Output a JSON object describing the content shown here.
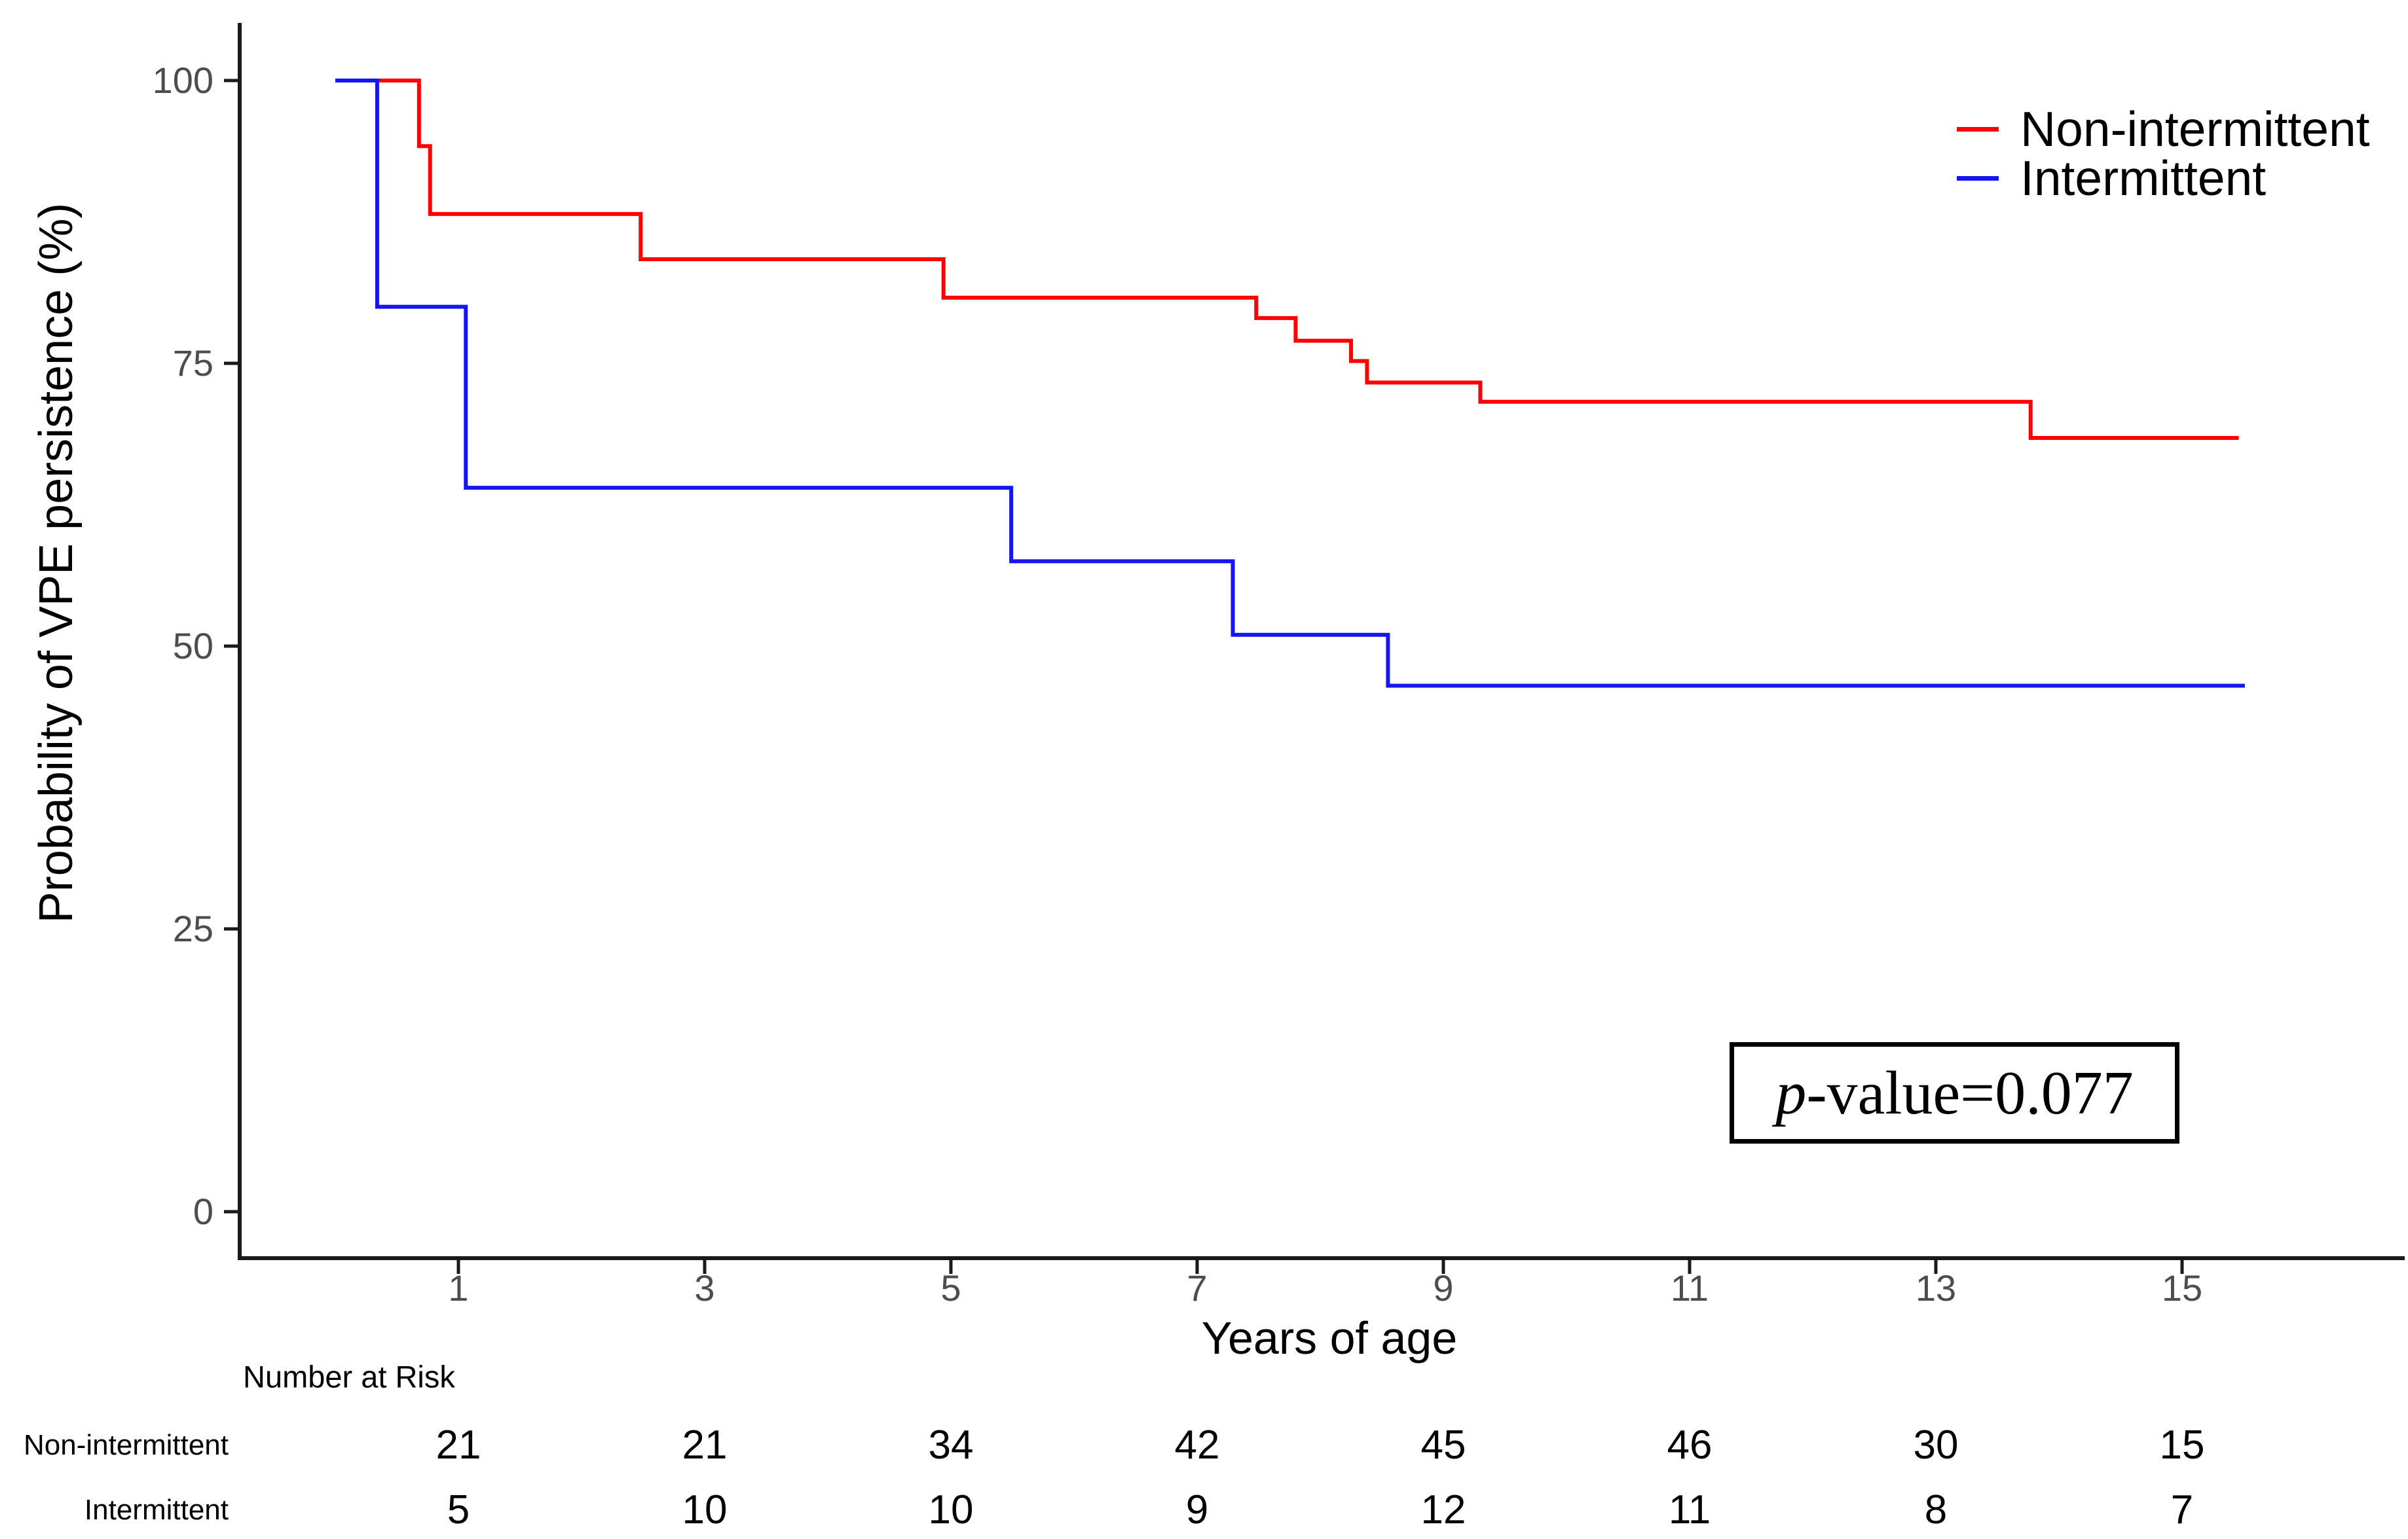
{
  "axes": {
    "y_title": "Probability of VPE persistence (%)",
    "x_title": "Years of age",
    "y_ticks": [
      "0",
      "25",
      "50",
      "75",
      "100"
    ],
    "x_ticks": [
      "1",
      "3",
      "5",
      "7",
      "9",
      "11",
      "13",
      "15"
    ]
  },
  "legend": [
    {
      "label": "Non-intermittent",
      "color": "#ff0000"
    },
    {
      "label": "Intermittent",
      "color": "#1515f0"
    }
  ],
  "pvalue": {
    "prefix": "p",
    "rest": "-value=0.077"
  },
  "risk_table": {
    "header": "Number at Risk",
    "rows": [
      {
        "label": "Non-intermittent",
        "values": [
          "21",
          "21",
          "34",
          "42",
          "45",
          "46",
          "30",
          "15"
        ]
      },
      {
        "label": "Intermittent",
        "values": [
          "5",
          "10",
          "10",
          "9",
          "12",
          "11",
          "8",
          "7"
        ]
      }
    ]
  },
  "chart_data": {
    "type": "line",
    "variant": "kaplan-meier-step",
    "title": "",
    "xlabel": "Years of age",
    "ylabel": "Probability of VPE persistence (%)",
    "xlim": [
      0,
      16.9
    ],
    "ylim": [
      0,
      100
    ],
    "xticks": [
      1,
      3,
      5,
      7,
      9,
      11,
      13,
      15
    ],
    "yticks": [
      0,
      25,
      50,
      75,
      100
    ],
    "grid": false,
    "legend_position": "top-right",
    "annotation": "p-value=0.077",
    "series": [
      {
        "name": "Non-intermittent",
        "color": "#ff0000",
        "step_points": [
          [
            0,
            100
          ],
          [
            0.68,
            94.2
          ],
          [
            0.77,
            88.2
          ],
          [
            2.48,
            84.2
          ],
          [
            4.94,
            80.8
          ],
          [
            7.48,
            79.0
          ],
          [
            7.8,
            77.0
          ],
          [
            8.25,
            75.2
          ],
          [
            8.38,
            73.3
          ],
          [
            9.3,
            71.6
          ],
          [
            13.77,
            68.4
          ],
          [
            15.46,
            68.4
          ]
        ]
      },
      {
        "name": "Intermittent",
        "color": "#1515f0",
        "step_points": [
          [
            0,
            100
          ],
          [
            0.34,
            80.0
          ],
          [
            1.06,
            64.0
          ],
          [
            5.49,
            57.5
          ],
          [
            7.29,
            51.0
          ],
          [
            8.55,
            46.5
          ],
          [
            15.51,
            46.5
          ]
        ]
      }
    ],
    "number_at_risk": {
      "times": [
        1,
        3,
        5,
        7,
        9,
        11,
        13,
        15
      ],
      "series": [
        {
          "name": "Non-intermittent",
          "values": [
            21,
            21,
            34,
            42,
            45,
            46,
            30,
            15
          ]
        },
        {
          "name": "Intermittent",
          "values": [
            5,
            10,
            10,
            9,
            12,
            11,
            8,
            7
          ]
        }
      ]
    }
  }
}
